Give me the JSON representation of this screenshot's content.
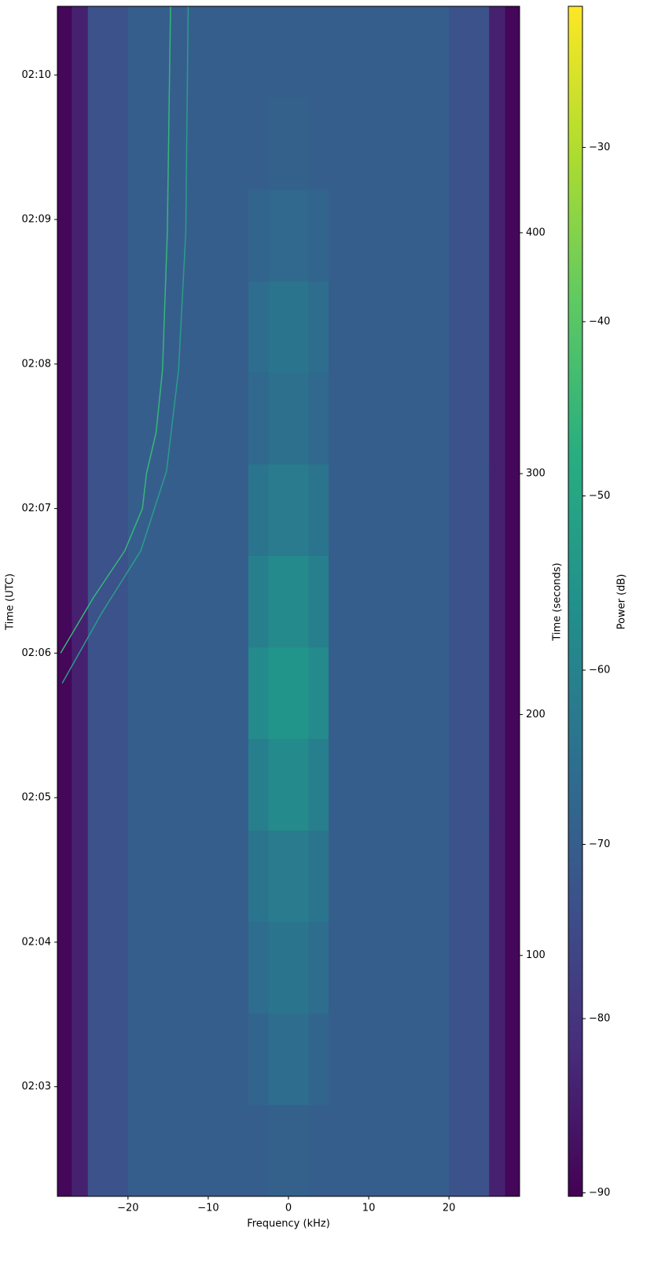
{
  "chart_data": {
    "type": "heatmap",
    "x_label": "Frequency (kHz)",
    "y_label": "Time (UTC)",
    "y2_label": "Time (seconds)",
    "colorbar_label": "Power (dB)",
    "colormap": "viridis",
    "xlim": [
      -28.8,
      28.8
    ],
    "xticks": [
      {
        "value": -20,
        "label": "−20"
      },
      {
        "value": -10,
        "label": "−10"
      },
      0,
      10,
      20
    ],
    "ylim": [
      0,
      494
    ],
    "yticks": [
      {
        "value": 45.5,
        "label": "02:03"
      },
      {
        "value": 105.5,
        "label": "02:04"
      },
      {
        "value": 165.5,
        "label": "02:05"
      },
      {
        "value": 225.5,
        "label": "02:06"
      },
      {
        "value": 285.5,
        "label": "02:07"
      },
      {
        "value": 345.5,
        "label": "02:08"
      },
      {
        "value": 405.5,
        "label": "02:09"
      },
      {
        "value": 465.5,
        "label": "02:10"
      }
    ],
    "y2lim": [
      0,
      494
    ],
    "y2ticks": [
      100,
      200,
      300,
      400
    ],
    "clim": [
      -90.2,
      -21.9
    ],
    "cticks": [
      {
        "value": -90,
        "label": "−90"
      },
      {
        "value": -80,
        "label": "−80"
      },
      {
        "value": -70,
        "label": "−70"
      },
      {
        "value": -60,
        "label": "−60"
      },
      {
        "value": -50,
        "label": "−50"
      },
      {
        "value": -40,
        "label": "−40"
      },
      {
        "value": -30,
        "label": "−30"
      }
    ],
    "x_edges": [
      -28.8,
      -27,
      -25,
      -20,
      -15,
      -10,
      -5,
      -2.5,
      0,
      2.5,
      5,
      10,
      15,
      20,
      25,
      27,
      28.8
    ],
    "y_edges": [
      0,
      38,
      76,
      114,
      152,
      190,
      228,
      266,
      304,
      342,
      380,
      418,
      456,
      494
    ],
    "z": [
      [
        -89,
        -84,
        -73,
        -70,
        -70,
        -70,
        -70,
        -69,
        -69,
        -70,
        -70,
        -70,
        -70,
        -73,
        -84,
        -89
      ],
      [
        -89,
        -84,
        -73,
        -70,
        -70,
        -70,
        -68,
        -66,
        -66,
        -68,
        -70,
        -70,
        -70,
        -73,
        -84,
        -89
      ],
      [
        -89,
        -84,
        -73,
        -70,
        -70,
        -70,
        -66,
        -64,
        -64,
        -66,
        -70,
        -70,
        -70,
        -73,
        -84,
        -89
      ],
      [
        -89,
        -84,
        -73,
        -70,
        -70,
        -70,
        -64,
        -62,
        -62,
        -64,
        -70,
        -70,
        -70,
        -73,
        -84,
        -89
      ],
      [
        -89,
        -84,
        -73,
        -70,
        -70,
        -70,
        -61,
        -58,
        -58,
        -61,
        -70,
        -70,
        -70,
        -73,
        -84,
        -89
      ],
      [
        -89,
        -84,
        -73,
        -70,
        -70,
        -70,
        -58,
        -55,
        -55,
        -58,
        -70,
        -70,
        -70,
        -73,
        -84,
        -89
      ],
      [
        -89,
        -84,
        -73,
        -70,
        -70,
        -70,
        -61,
        -58,
        -58,
        -61,
        -70,
        -70,
        -70,
        -73,
        -84,
        -89
      ],
      [
        -89,
        -84,
        -73,
        -70,
        -70,
        -70,
        -64,
        -62,
        -62,
        -64,
        -70,
        -70,
        -70,
        -73,
        -84,
        -89
      ],
      [
        -89,
        -84,
        -73,
        -70,
        -70,
        -70,
        -67,
        -65,
        -65,
        -67,
        -70,
        -70,
        -70,
        -73,
        -84,
        -89
      ],
      [
        -89,
        -84,
        -73,
        -70,
        -70,
        -70,
        -66,
        -64,
        -64,
        -66,
        -70,
        -70,
        -70,
        -73,
        -84,
        -89
      ],
      [
        -89,
        -84,
        -73,
        -70,
        -70,
        -70,
        -68,
        -67,
        -67,
        -68,
        -70,
        -70,
        -70,
        -73,
        -84,
        -89
      ],
      [
        -89,
        -84,
        -73,
        -70,
        -70,
        -70,
        -70,
        -69,
        -69,
        -70,
        -70,
        -70,
        -70,
        -73,
        -84,
        -89
      ],
      [
        -89,
        -84,
        -73,
        -70,
        -70,
        -70,
        -70,
        -70,
        -70,
        -70,
        -70,
        -70,
        -70,
        -73,
        -84,
        -89
      ]
    ],
    "lines": [
      {
        "color": "#35b779",
        "x": [
          -28.4,
          -24.3,
          -20.4,
          -18.2,
          -17.7,
          -16.5,
          -15.7,
          -15.1,
          -14.7
        ],
        "y": [
          225.5,
          248.6,
          268,
          285.5,
          300,
          317,
          343,
          400,
          494
        ]
      },
      {
        "color": "#2a9d8a",
        "x": [
          -28.2,
          -23.3,
          -18.4,
          -15.2,
          -13.7,
          -12.8,
          -12.5
        ],
        "y": [
          213,
          242,
          268,
          301,
          343,
          400,
          494
        ]
      }
    ]
  }
}
